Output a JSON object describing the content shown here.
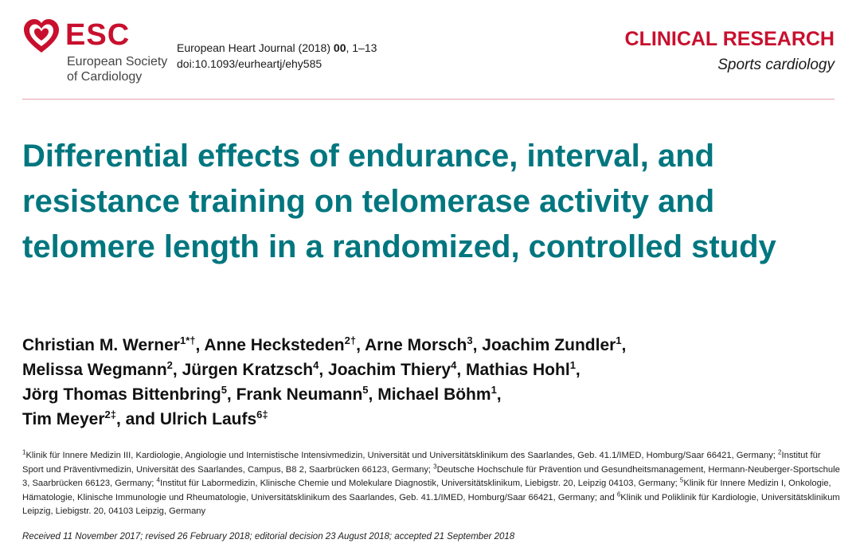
{
  "logo": {
    "text": "ESC",
    "subtitle_line1": "European Society",
    "subtitle_line2": "of Cardiology",
    "brand_color": "#c8102e"
  },
  "journal": {
    "citation_prefix": "European Heart Journal (2018) ",
    "citation_bold": "00",
    "citation_suffix": ", 1–13",
    "doi": "doi:10.1093/eurheartj/ehy585"
  },
  "section": {
    "label": "CLINICAL RESEARCH",
    "subsection": "Sports cardiology"
  },
  "article": {
    "title": "Differential effects of endurance, interval, and resistance training on telomerase activity and telomere length in a randomized, controlled study",
    "title_color": "#00767f"
  },
  "authors": [
    {
      "name": "Christian M. Werner",
      "sup": "1*†",
      "sep": ", "
    },
    {
      "name": "Anne Hecksteden",
      "sup": "2†",
      "sep": ", "
    },
    {
      "name": "Arne Morsch",
      "sup": "3",
      "sep": ", "
    },
    {
      "name": "Joachim Zundler",
      "sup": "1",
      "sep": ", "
    },
    {
      "name": "Melissa Wegmann",
      "sup": "2",
      "sep": ", "
    },
    {
      "name": "Jürgen Kratzsch",
      "sup": "4",
      "sep": ", "
    },
    {
      "name": "Joachim Thiery",
      "sup": "4",
      "sep": ", "
    },
    {
      "name": "Mathias Hohl",
      "sup": "1",
      "sep": ", "
    },
    {
      "name": "Jörg Thomas Bittenbring",
      "sup": "5",
      "sep": ", "
    },
    {
      "name": "Frank Neumann",
      "sup": "5",
      "sep": ", "
    },
    {
      "name": "Michael Böhm",
      "sup": "1",
      "sep": ", "
    },
    {
      "name": "Tim Meyer",
      "sup": "2‡",
      "sep": ", and "
    },
    {
      "name": "Ulrich Laufs",
      "sup": "6‡",
      "sep": ""
    }
  ],
  "affiliations": [
    {
      "sup": "1",
      "text": "Klinik für Innere Medizin III, Kardiologie, Angiologie und Internistische Intensivmedizin, Universität und Universitätsklinikum des Saarlandes, Geb. 41.1/IMED, Homburg/Saar 66421, Germany; "
    },
    {
      "sup": "2",
      "text": "Institut für Sport und Präventivmedizin, Universität des Saarlandes, Campus, B8 2, Saarbrücken 66123, Germany; "
    },
    {
      "sup": "3",
      "text": "Deutsche Hochschule für Prävention und Gesundheitsmanagement, Hermann-Neuberger-Sportschule 3, Saarbrücken 66123, Germany; "
    },
    {
      "sup": "4",
      "text": "Institut für Labormedizin, Klinische Chemie und Molekulare Diagnostik, Universitätsklinikum, Liebigstr. 20, Leipzig 04103, Germany; "
    },
    {
      "sup": "5",
      "text": "Klinik für Innere Medizin I, Onkologie, Hämatologie, Klinische Immunologie und Rheumatologie, Universitätsklinikum des Saarlandes, Geb. 41.1/IMED, Homburg/Saar 66421, Germany; and "
    },
    {
      "sup": "6",
      "text": "Klinik und Poliklinik für Kardiologie, Universitätsklinikum Leipzig, Liebigstr. 20, 04103 Leipzig, Germany"
    }
  ],
  "history": "Received 11 November 2017; revised 26 February 2018; editorial decision 23 August 2018; accepted 21 September 2018"
}
